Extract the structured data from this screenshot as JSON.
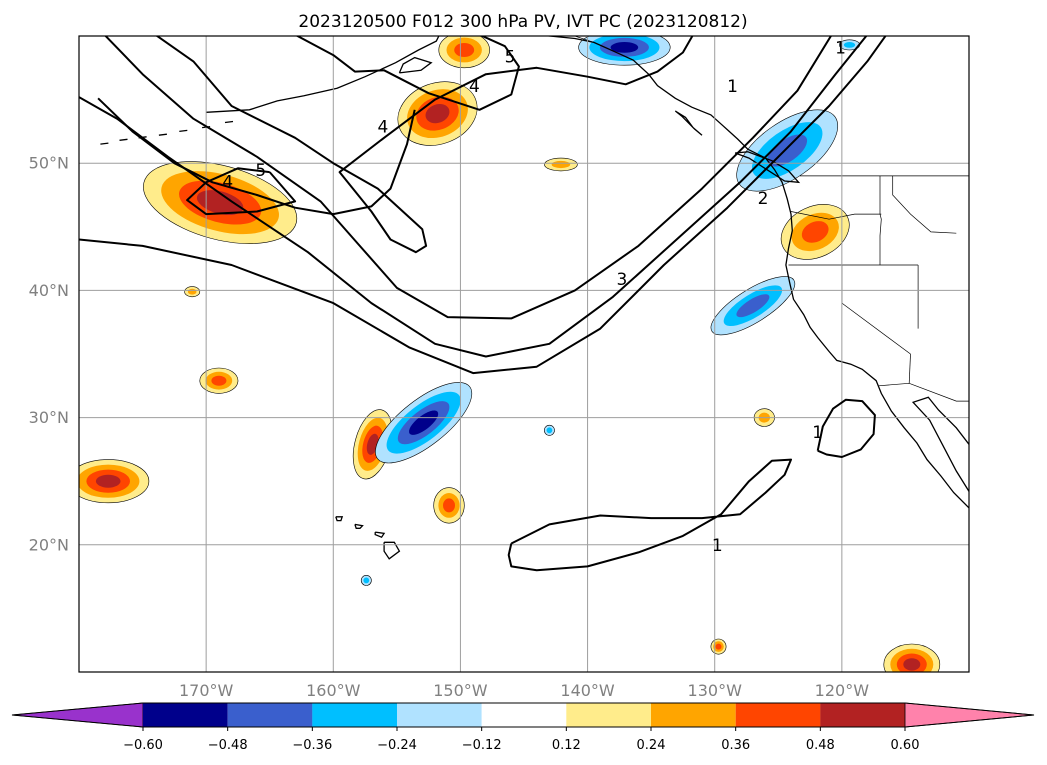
{
  "title": "2023120500 F012 300 hPa PV, IVT PC (2023120812)",
  "chart_data": {
    "type": "heatmap",
    "title": "2023120500 F012 300 hPa PV, IVT PC (2023120812)",
    "projection": "lon-lat map, North Pacific and western North America",
    "xlim": [
      -180,
      -110
    ],
    "ylim": [
      10,
      60
    ],
    "x_ticks": [
      {
        "value": -170,
        "label": "170°W"
      },
      {
        "value": -160,
        "label": "160°W"
      },
      {
        "value": -150,
        "label": "150°W"
      },
      {
        "value": -140,
        "label": "140°W"
      },
      {
        "value": -130,
        "label": "130°W"
      },
      {
        "value": -120,
        "label": "120°W"
      }
    ],
    "y_ticks": [
      {
        "value": 20,
        "label": "20°N"
      },
      {
        "value": 30,
        "label": "30°N"
      },
      {
        "value": 40,
        "label": "40°N"
      },
      {
        "value": 50,
        "label": "50°N"
      }
    ],
    "grid": true,
    "colorbar": {
      "orientation": "horizontal",
      "extend": "both",
      "boundaries": [
        -0.72,
        -0.6,
        -0.48,
        -0.36,
        -0.24,
        -0.12,
        0.12,
        0.24,
        0.36,
        0.48,
        0.6,
        0.72
      ],
      "colors": [
        "#9932cc",
        "#00008b",
        "#3a5fcd",
        "#00bfff",
        "#b0e2ff",
        "#ffffff",
        "#ffec8b",
        "#ffa500",
        "#ff4500",
        "#b22222",
        "#ff82ab"
      ],
      "tick_labels": [
        "−0.60",
        "−0.48",
        "−0.36",
        "−0.24",
        "−0.12",
        "0.12",
        "0.24",
        "0.36",
        "0.48",
        "0.60"
      ]
    },
    "pv_contours": [
      {
        "level": 1,
        "label": "1"
      },
      {
        "level": 2,
        "label": "2"
      },
      {
        "level": 3,
        "label": "3"
      },
      {
        "level": 4,
        "label": "4"
      },
      {
        "level": 5,
        "label": "5"
      }
    ],
    "contour_labels": [
      {
        "text": "1",
        "lon": -128.6,
        "lat": 56.0
      },
      {
        "text": "1",
        "lon": -120.1,
        "lat": 59.0
      },
      {
        "text": "1",
        "lon": -121.9,
        "lat": 28.8
      },
      {
        "text": "1",
        "lon": -129.8,
        "lat": 19.9
      },
      {
        "text": "2",
        "lon": -126.2,
        "lat": 47.2
      },
      {
        "text": "3",
        "lon": -137.3,
        "lat": 40.8
      },
      {
        "text": "4",
        "lon": -168.3,
        "lat": 48.5
      },
      {
        "text": "4",
        "lon": -156.1,
        "lat": 52.8
      },
      {
        "text": "4",
        "lon": -148.9,
        "lat": 56.0
      },
      {
        "text": "5",
        "lon": -165.7,
        "lat": 49.4
      },
      {
        "text": "5",
        "lon": -146.1,
        "lat": 58.3
      }
    ],
    "ivt_positive_features": [
      {
        "lon": -168.9,
        "lat": 46.9,
        "max": 0.48
      },
      {
        "lon": -151.8,
        "lat": 53.9,
        "max": 0.48
      },
      {
        "lon": -149.7,
        "lat": 58.9,
        "max": 0.36
      },
      {
        "lon": -177.7,
        "lat": 25.0,
        "max": 0.48
      },
      {
        "lon": -156.9,
        "lat": 27.9,
        "max": 0.48
      },
      {
        "lon": -150.9,
        "lat": 23.1,
        "max": 0.36
      },
      {
        "lon": -169.0,
        "lat": 32.9,
        "max": 0.36
      },
      {
        "lon": -171.1,
        "lat": 39.9,
        "max": 0.24
      },
      {
        "lon": -122.1,
        "lat": 44.6,
        "max": 0.36
      },
      {
        "lon": -142.1,
        "lat": 49.9,
        "max": 0.24
      },
      {
        "lon": -114.5,
        "lat": 10.6,
        "max": 0.48
      },
      {
        "lon": -129.7,
        "lat": 12.0,
        "max": 0.36
      },
      {
        "lon": -126.1,
        "lat": 30.0,
        "max": 0.24
      }
    ],
    "ivt_negative_features": [
      {
        "lon": -124.3,
        "lat": 51.0,
        "min": -0.36
      },
      {
        "lon": -137.1,
        "lat": 59.1,
        "min": -0.48
      },
      {
        "lon": -152.9,
        "lat": 29.6,
        "min": -0.48
      },
      {
        "lon": -127.0,
        "lat": 38.8,
        "min": -0.36
      },
      {
        "lon": -119.4,
        "lat": 59.3,
        "min": -0.24
      },
      {
        "lon": -143.0,
        "lat": 29.0,
        "min": -0.24
      },
      {
        "lon": -157.4,
        "lat": 17.2,
        "min": -0.24
      }
    ]
  }
}
